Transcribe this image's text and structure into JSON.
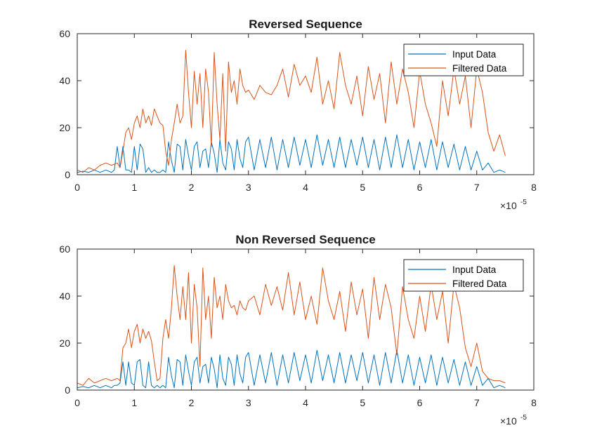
{
  "figure": {
    "background": "#ffffff"
  },
  "chart_data": [
    {
      "type": "line",
      "title": "Reversed Sequence",
      "xlabel": "",
      "ylabel": "",
      "xlim": [
        0,
        8
      ],
      "ylim": [
        0,
        60
      ],
      "x_scale_multiplier_base": "×10",
      "x_scale_multiplier_exponent": "-5",
      "x_ticks": [
        "0",
        "1",
        "2",
        "3",
        "4",
        "5",
        "6",
        "7",
        "8"
      ],
      "y_ticks": [
        "0",
        "20",
        "40",
        "60"
      ],
      "grid": false,
      "legend_position": "top-right",
      "series": [
        {
          "name": "Input Data",
          "color": "#0072BD",
          "x": [
            0,
            0.1,
            0.2,
            0.3,
            0.4,
            0.5,
            0.6,
            0.65,
            0.7,
            0.75,
            0.8,
            0.85,
            0.9,
            0.95,
            1.0,
            1.05,
            1.1,
            1.15,
            1.2,
            1.25,
            1.3,
            1.35,
            1.4,
            1.45,
            1.5,
            1.55,
            1.6,
            1.65,
            1.7,
            1.75,
            1.8,
            1.85,
            1.9,
            1.95,
            2.0,
            2.05,
            2.1,
            2.15,
            2.2,
            2.25,
            2.3,
            2.35,
            2.4,
            2.45,
            2.5,
            2.55,
            2.6,
            2.65,
            2.7,
            2.75,
            2.8,
            2.85,
            2.9,
            2.95,
            3.0,
            3.1,
            3.2,
            3.3,
            3.4,
            3.5,
            3.6,
            3.7,
            3.8,
            3.9,
            4.0,
            4.1,
            4.2,
            4.3,
            4.4,
            4.5,
            4.6,
            4.7,
            4.8,
            4.9,
            5.0,
            5.1,
            5.2,
            5.3,
            5.4,
            5.5,
            5.6,
            5.7,
            5.8,
            5.9,
            6.0,
            6.1,
            6.2,
            6.3,
            6.4,
            6.5,
            6.6,
            6.7,
            6.8,
            6.9,
            7.0,
            7.1,
            7.2,
            7.3,
            7.4,
            7.5
          ],
          "y": [
            1,
            1.5,
            1,
            2,
            1,
            2,
            1,
            2,
            12,
            3,
            12,
            2,
            2,
            1,
            12,
            2,
            13,
            11,
            1,
            3,
            1,
            2,
            1,
            1,
            2,
            1,
            14,
            6,
            1,
            13,
            12,
            2,
            15,
            8,
            2,
            12,
            14,
            3,
            10,
            11,
            3,
            14,
            9,
            1,
            15,
            5,
            2,
            14,
            11,
            2,
            15,
            7,
            3,
            14,
            16,
            2,
            15,
            3,
            16,
            2,
            15,
            3,
            16,
            4,
            15,
            3,
            17,
            4,
            15,
            3,
            16,
            3,
            15,
            4,
            16,
            3,
            15,
            2,
            16,
            3,
            17,
            3,
            15,
            2,
            14,
            3,
            15,
            2,
            14,
            3,
            13,
            2,
            12,
            2,
            10,
            2,
            5,
            1,
            2,
            1
          ]
        },
        {
          "name": "Filtered Data",
          "color": "#D95319",
          "x": [
            0,
            0.1,
            0.2,
            0.3,
            0.4,
            0.5,
            0.6,
            0.7,
            0.75,
            0.8,
            0.85,
            0.9,
            0.95,
            1.0,
            1.05,
            1.1,
            1.15,
            1.2,
            1.25,
            1.3,
            1.35,
            1.4,
            1.45,
            1.5,
            1.55,
            1.6,
            1.65,
            1.7,
            1.75,
            1.8,
            1.85,
            1.9,
            1.95,
            2.0,
            2.05,
            2.1,
            2.15,
            2.2,
            2.25,
            2.3,
            2.35,
            2.4,
            2.45,
            2.5,
            2.55,
            2.6,
            2.65,
            2.7,
            2.75,
            2.8,
            2.85,
            2.9,
            2.95,
            3.0,
            3.1,
            3.2,
            3.3,
            3.4,
            3.5,
            3.6,
            3.7,
            3.8,
            3.9,
            4.0,
            4.1,
            4.2,
            4.3,
            4.4,
            4.5,
            4.6,
            4.7,
            4.8,
            4.9,
            5.0,
            5.1,
            5.2,
            5.3,
            5.4,
            5.5,
            5.6,
            5.7,
            5.8,
            5.9,
            6.0,
            6.1,
            6.2,
            6.3,
            6.4,
            6.5,
            6.6,
            6.7,
            6.8,
            6.9,
            7.0,
            7.1,
            7.2,
            7.3,
            7.4,
            7.5
          ],
          "y": [
            2,
            1,
            3,
            2,
            4,
            5,
            4,
            5,
            3,
            10,
            18,
            20,
            15,
            22,
            25,
            20,
            28,
            22,
            25,
            21,
            28,
            25,
            22,
            21,
            10,
            4,
            15,
            22,
            30,
            22,
            25,
            53,
            35,
            20,
            44,
            30,
            43,
            20,
            45,
            35,
            12,
            52,
            30,
            15,
            43,
            10,
            48,
            35,
            40,
            30,
            45,
            38,
            35,
            36,
            32,
            38,
            35,
            34,
            38,
            45,
            33,
            47,
            38,
            42,
            35,
            50,
            30,
            40,
            28,
            52,
            38,
            30,
            42,
            25,
            46,
            32,
            43,
            22,
            48,
            30,
            45,
            35,
            20,
            44,
            30,
            22,
            12,
            40,
            25,
            45,
            30,
            42,
            20,
            45,
            35,
            18,
            10,
            17,
            8
          ]
        }
      ]
    },
    {
      "type": "line",
      "title": "Non Reversed Sequence",
      "xlabel": "",
      "ylabel": "",
      "xlim": [
        0,
        8
      ],
      "ylim": [
        0,
        60
      ],
      "x_scale_multiplier_base": "×10",
      "x_scale_multiplier_exponent": "-5",
      "x_ticks": [
        "0",
        "1",
        "2",
        "3",
        "4",
        "5",
        "6",
        "7",
        "8"
      ],
      "y_ticks": [
        "0",
        "20",
        "40",
        "60"
      ],
      "grid": false,
      "legend_position": "top-right",
      "series": [
        {
          "name": "Input Data",
          "color": "#0072BD",
          "x": [
            0,
            0.1,
            0.2,
            0.3,
            0.4,
            0.5,
            0.6,
            0.65,
            0.7,
            0.75,
            0.8,
            0.85,
            0.9,
            0.95,
            1.0,
            1.05,
            1.1,
            1.15,
            1.2,
            1.25,
            1.3,
            1.35,
            1.4,
            1.45,
            1.5,
            1.55,
            1.6,
            1.65,
            1.7,
            1.75,
            1.8,
            1.85,
            1.9,
            1.95,
            2.0,
            2.05,
            2.1,
            2.15,
            2.2,
            2.25,
            2.3,
            2.35,
            2.4,
            2.45,
            2.5,
            2.55,
            2.6,
            2.65,
            2.7,
            2.75,
            2.8,
            2.85,
            2.9,
            2.95,
            3.0,
            3.1,
            3.2,
            3.3,
            3.4,
            3.5,
            3.6,
            3.7,
            3.8,
            3.9,
            4.0,
            4.1,
            4.2,
            4.3,
            4.4,
            4.5,
            4.6,
            4.7,
            4.8,
            4.9,
            5.0,
            5.1,
            5.2,
            5.3,
            5.4,
            5.5,
            5.6,
            5.7,
            5.8,
            5.9,
            6.0,
            6.1,
            6.2,
            6.3,
            6.4,
            6.5,
            6.6,
            6.7,
            6.8,
            6.9,
            7.0,
            7.1,
            7.2,
            7.3,
            7.4,
            7.5
          ],
          "y": [
            1,
            1.5,
            1,
            2,
            1,
            2,
            1,
            2,
            2,
            3,
            12,
            2,
            12,
            3,
            2,
            12,
            13,
            2,
            1,
            12,
            2,
            1,
            2,
            1,
            2,
            1,
            14,
            6,
            1,
            13,
            12,
            2,
            15,
            8,
            2,
            12,
            14,
            3,
            10,
            11,
            3,
            14,
            9,
            1,
            15,
            5,
            2,
            14,
            11,
            2,
            15,
            7,
            3,
            14,
            16,
            2,
            15,
            3,
            16,
            2,
            15,
            3,
            16,
            4,
            15,
            3,
            17,
            4,
            15,
            3,
            16,
            3,
            15,
            4,
            16,
            3,
            15,
            2,
            16,
            3,
            17,
            3,
            15,
            2,
            14,
            3,
            15,
            2,
            14,
            3,
            13,
            2,
            12,
            2,
            10,
            2,
            5,
            1,
            2,
            1
          ]
        },
        {
          "name": "Filtered Data",
          "color": "#D95319",
          "x": [
            0,
            0.1,
            0.2,
            0.3,
            0.4,
            0.5,
            0.6,
            0.7,
            0.75,
            0.8,
            0.85,
            0.9,
            0.95,
            1.0,
            1.05,
            1.1,
            1.15,
            1.2,
            1.25,
            1.3,
            1.35,
            1.4,
            1.45,
            1.5,
            1.55,
            1.6,
            1.65,
            1.7,
            1.75,
            1.8,
            1.85,
            1.9,
            1.95,
            2.0,
            2.05,
            2.1,
            2.15,
            2.2,
            2.25,
            2.3,
            2.35,
            2.4,
            2.45,
            2.5,
            2.55,
            2.6,
            2.65,
            2.7,
            2.75,
            2.8,
            2.85,
            2.9,
            2.95,
            3.0,
            3.1,
            3.2,
            3.3,
            3.4,
            3.5,
            3.6,
            3.7,
            3.8,
            3.9,
            4.0,
            4.1,
            4.2,
            4.3,
            4.4,
            4.5,
            4.6,
            4.7,
            4.8,
            4.9,
            5.0,
            5.1,
            5.2,
            5.3,
            5.4,
            5.5,
            5.6,
            5.7,
            5.8,
            5.9,
            6.0,
            6.1,
            6.2,
            6.3,
            6.4,
            6.5,
            6.6,
            6.7,
            6.8,
            6.9,
            7.0,
            7.1,
            7.2,
            7.3,
            7.4,
            7.5
          ],
          "y": [
            3,
            2,
            5,
            3,
            4,
            5,
            4,
            5,
            4,
            18,
            20,
            26,
            18,
            25,
            28,
            20,
            26,
            22,
            25,
            21,
            12,
            4,
            5,
            22,
            30,
            22,
            35,
            53,
            40,
            30,
            44,
            30,
            50,
            20,
            45,
            35,
            10,
            52,
            30,
            40,
            22,
            48,
            35,
            40,
            30,
            45,
            38,
            35,
            36,
            32,
            38,
            35,
            34,
            38,
            40,
            32,
            45,
            36,
            44,
            34,
            50,
            32,
            46,
            30,
            40,
            28,
            52,
            38,
            30,
            42,
            25,
            46,
            32,
            43,
            22,
            48,
            30,
            45,
            35,
            15,
            44,
            30,
            22,
            40,
            25,
            45,
            30,
            42,
            20,
            45,
            35,
            18,
            10,
            20,
            8,
            5,
            4,
            4,
            3
          ]
        }
      ]
    }
  ]
}
